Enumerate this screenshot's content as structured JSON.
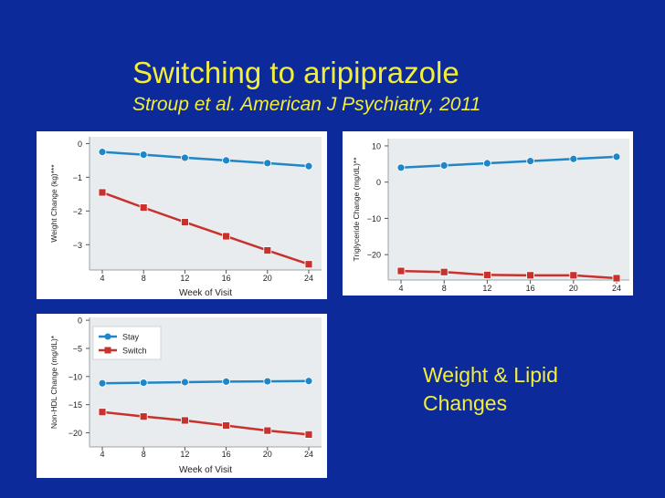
{
  "slide": {
    "title": "Switching to aripiprazole",
    "subtitle": "Stroup et al. American J Psychiatry, 2011",
    "caption_lines": [
      "Weight & Lipid",
      "Changes"
    ]
  },
  "colors": {
    "background": "#0d2a9a",
    "title": "#f2ee3a",
    "stay": "#1f86c8",
    "switch": "#c8322d",
    "plot_bg": "#e8ecef"
  },
  "chart_data": [
    {
      "type": "line",
      "ylabel": "Weight Change (kg)***",
      "xlabel": "Week of Visit",
      "x": [
        4,
        8,
        12,
        16,
        20,
        24
      ],
      "xticks": [
        "4",
        "8",
        "12",
        "16",
        "20",
        "24"
      ],
      "yticks": [
        0,
        -1,
        -2,
        -3
      ],
      "ytick_labels": [
        "0",
        "−1",
        "−2",
        "−3"
      ],
      "ylim": [
        -3.75,
        0.2
      ],
      "legend": false,
      "series": [
        {
          "key": "stay",
          "marker": "circle",
          "values": [
            -0.25,
            -0.33,
            -0.42,
            -0.5,
            -0.58,
            -0.67
          ]
        },
        {
          "key": "switch",
          "marker": "square",
          "values": [
            -1.45,
            -1.9,
            -2.33,
            -2.75,
            -3.17,
            -3.58
          ]
        }
      ]
    },
    {
      "type": "line",
      "ylabel": "Triglyceride Change (mg/dL)**",
      "xlabel": "",
      "x": [
        4,
        8,
        12,
        16,
        20,
        24
      ],
      "xticks": [
        "4",
        "8",
        "12",
        "16",
        "20",
        "24"
      ],
      "yticks": [
        10,
        0,
        -10,
        -20
      ],
      "ytick_labels": [
        "10",
        "0",
        "−10",
        "−20"
      ],
      "ylim": [
        -27,
        12
      ],
      "legend": false,
      "series": [
        {
          "key": "stay",
          "marker": "circle",
          "values": [
            4,
            4.6,
            5.2,
            5.8,
            6.4,
            7
          ]
        },
        {
          "key": "switch",
          "marker": "square",
          "values": [
            -24.5,
            -24.8,
            -25.6,
            -25.7,
            -25.7,
            -26.5
          ]
        }
      ]
    },
    {
      "type": "line",
      "ylabel": "Non-HDL Change (mg/dL)*",
      "xlabel": "Week of Visit",
      "x": [
        4,
        8,
        12,
        16,
        20,
        24
      ],
      "xticks": [
        "4",
        "8",
        "12",
        "16",
        "20",
        "24"
      ],
      "yticks": [
        0,
        -5,
        -10,
        -15,
        -20
      ],
      "ytick_labels": [
        "0",
        "−5",
        "−10",
        "−15",
        "−20"
      ],
      "ylim": [
        -22.5,
        0.5
      ],
      "legend": true,
      "legend_placement": "top-left",
      "series": [
        {
          "key": "stay",
          "name": "Stay",
          "marker": "circle",
          "values": [
            -11.2,
            -11.1,
            -11,
            -10.9,
            -10.85,
            -10.8
          ]
        },
        {
          "key": "switch",
          "name": "Switch",
          "marker": "square",
          "values": [
            -16.3,
            -17.1,
            -17.8,
            -18.7,
            -19.6,
            -20.3
          ]
        }
      ]
    }
  ]
}
